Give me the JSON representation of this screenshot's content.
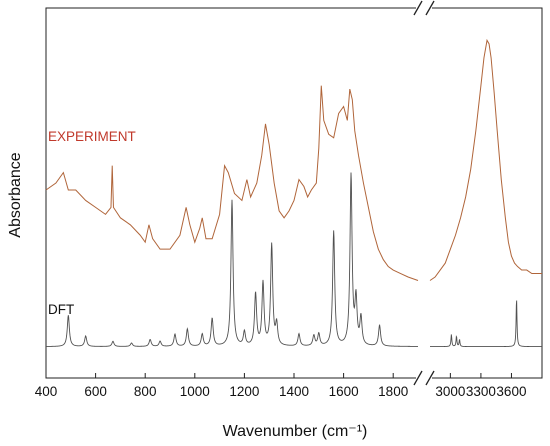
{
  "chart_data": {
    "type": "line",
    "xlabel": "Wavenumber (cm⁻¹)",
    "ylabel": "Absorbance",
    "axis_break": true,
    "grid": false,
    "x_segments": [
      {
        "xlim": [
          400,
          1900
        ],
        "ticks": [
          400,
          600,
          800,
          1000,
          1200,
          1400,
          1600,
          1800
        ]
      },
      {
        "xlim": [
          2800,
          3900
        ],
        "ticks": [
          3000,
          3300,
          3600
        ]
      }
    ],
    "ylim": [
      0,
      1
    ],
    "y_ticks_shown": false,
    "series": [
      {
        "name": "EXPERIMENT",
        "color": "#b0653a",
        "label_color": "#c0392b",
        "points_segment1": [
          [
            400,
            0.5
          ],
          [
            440,
            0.52
          ],
          [
            470,
            0.55
          ],
          [
            490,
            0.5
          ],
          [
            520,
            0.5
          ],
          [
            560,
            0.47
          ],
          [
            600,
            0.45
          ],
          [
            640,
            0.43
          ],
          [
            662,
            0.45
          ],
          [
            667,
            0.57
          ],
          [
            672,
            0.45
          ],
          [
            700,
            0.42
          ],
          [
            740,
            0.4
          ],
          [
            780,
            0.37
          ],
          [
            800,
            0.35
          ],
          [
            815,
            0.4
          ],
          [
            830,
            0.36
          ],
          [
            860,
            0.33
          ],
          [
            900,
            0.33
          ],
          [
            940,
            0.37
          ],
          [
            965,
            0.45
          ],
          [
            980,
            0.4
          ],
          [
            1000,
            0.35
          ],
          [
            1020,
            0.39
          ],
          [
            1030,
            0.42
          ],
          [
            1045,
            0.36
          ],
          [
            1070,
            0.36
          ],
          [
            1100,
            0.43
          ],
          [
            1120,
            0.57
          ],
          [
            1135,
            0.55
          ],
          [
            1160,
            0.49
          ],
          [
            1190,
            0.47
          ],
          [
            1210,
            0.53
          ],
          [
            1225,
            0.48
          ],
          [
            1250,
            0.52
          ],
          [
            1270,
            0.6
          ],
          [
            1285,
            0.69
          ],
          [
            1300,
            0.63
          ],
          [
            1320,
            0.52
          ],
          [
            1340,
            0.44
          ],
          [
            1360,
            0.42
          ],
          [
            1380,
            0.44
          ],
          [
            1400,
            0.47
          ],
          [
            1420,
            0.53
          ],
          [
            1440,
            0.51
          ],
          [
            1455,
            0.48
          ],
          [
            1470,
            0.5
          ],
          [
            1490,
            0.52
          ],
          [
            1500,
            0.62
          ],
          [
            1510,
            0.8
          ],
          [
            1520,
            0.7
          ],
          [
            1540,
            0.66
          ],
          [
            1560,
            0.65
          ],
          [
            1580,
            0.72
          ],
          [
            1600,
            0.74
          ],
          [
            1615,
            0.7
          ],
          [
            1625,
            0.79
          ],
          [
            1635,
            0.76
          ],
          [
            1645,
            0.67
          ],
          [
            1660,
            0.6
          ],
          [
            1680,
            0.52
          ],
          [
            1700,
            0.45
          ],
          [
            1720,
            0.38
          ],
          [
            1740,
            0.33
          ],
          [
            1760,
            0.3
          ],
          [
            1780,
            0.28
          ],
          [
            1800,
            0.27
          ],
          [
            1830,
            0.26
          ],
          [
            1860,
            0.25
          ],
          [
            1900,
            0.24
          ]
        ],
        "points_segment2": [
          [
            2800,
            0.24
          ],
          [
            2850,
            0.25
          ],
          [
            2900,
            0.27
          ],
          [
            2950,
            0.29
          ],
          [
            3000,
            0.33
          ],
          [
            3050,
            0.37
          ],
          [
            3100,
            0.42
          ],
          [
            3150,
            0.48
          ],
          [
            3200,
            0.56
          ],
          [
            3250,
            0.67
          ],
          [
            3300,
            0.8
          ],
          [
            3330,
            0.88
          ],
          [
            3360,
            0.93
          ],
          [
            3380,
            0.92
          ],
          [
            3400,
            0.88
          ],
          [
            3430,
            0.78
          ],
          [
            3460,
            0.67
          ],
          [
            3500,
            0.53
          ],
          [
            3540,
            0.42
          ],
          [
            3570,
            0.35
          ],
          [
            3600,
            0.31
          ],
          [
            3630,
            0.29
          ],
          [
            3660,
            0.28
          ],
          [
            3700,
            0.27
          ],
          [
            3750,
            0.27
          ],
          [
            3800,
            0.26
          ],
          [
            3850,
            0.26
          ],
          [
            3900,
            0.26
          ]
        ]
      },
      {
        "name": "DFT",
        "color": "#505050",
        "label_color": "#111111",
        "baseline": 0.05,
        "peaks_segment1": [
          [
            490,
            0.09
          ],
          [
            560,
            0.03
          ],
          [
            670,
            0.015
          ],
          [
            745,
            0.01
          ],
          [
            820,
            0.02
          ],
          [
            860,
            0.015
          ],
          [
            920,
            0.035
          ],
          [
            970,
            0.05
          ],
          [
            1030,
            0.035
          ],
          [
            1070,
            0.08
          ],
          [
            1150,
            0.42
          ],
          [
            1200,
            0.04
          ],
          [
            1245,
            0.15
          ],
          [
            1275,
            0.18
          ],
          [
            1310,
            0.29
          ],
          [
            1330,
            0.06
          ],
          [
            1420,
            0.035
          ],
          [
            1480,
            0.03
          ],
          [
            1500,
            0.035
          ],
          [
            1560,
            0.33
          ],
          [
            1630,
            0.49
          ],
          [
            1650,
            0.13
          ],
          [
            1670,
            0.08
          ],
          [
            1745,
            0.06
          ]
        ],
        "peaks_segment2": [
          [
            3010,
            0.035
          ],
          [
            3060,
            0.03
          ],
          [
            3090,
            0.02
          ],
          [
            3650,
            0.14
          ]
        ]
      }
    ]
  }
}
